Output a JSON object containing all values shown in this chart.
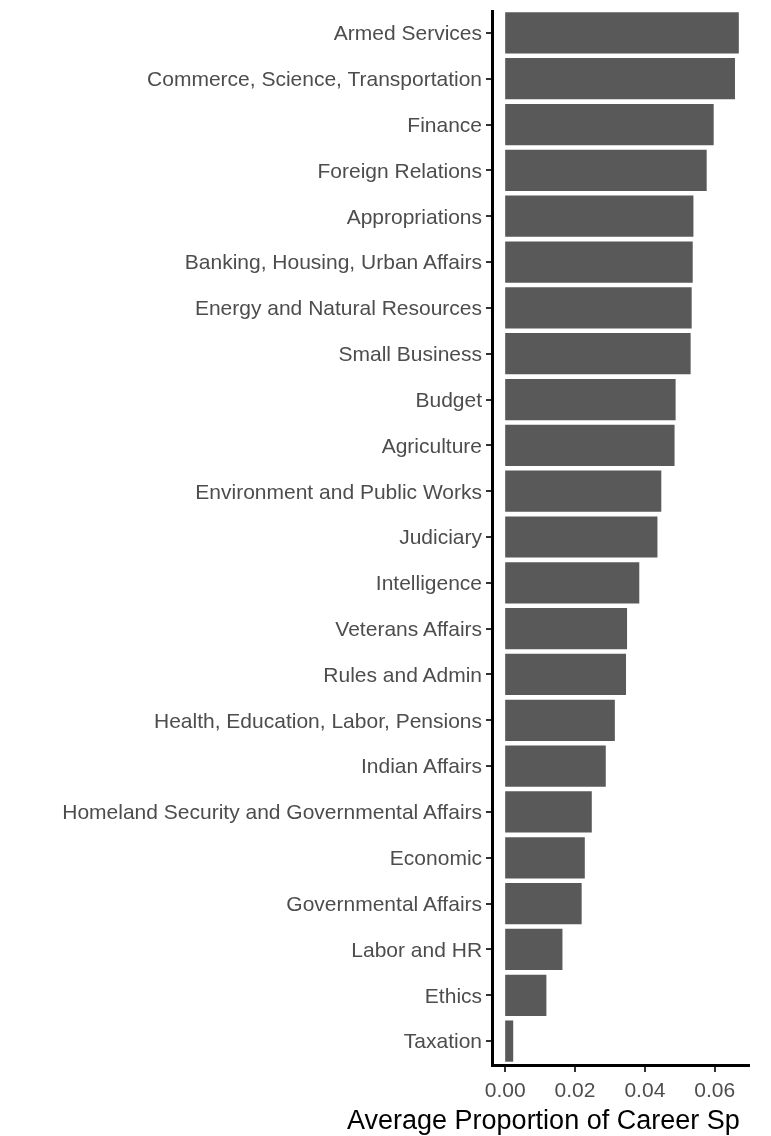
{
  "chart_data": {
    "type": "bar",
    "orientation": "horizontal",
    "xlabel": "Average Proportion of Career Sp",
    "categories": [
      "Armed Services",
      "Commerce, Science, Transportation",
      "Finance",
      "Foreign Relations",
      "Appropriations",
      "Banking, Housing, Urban Affairs",
      "Energy and Natural Resources",
      "Small Business",
      "Budget",
      "Agriculture",
      "Environment and Public Works",
      "Judiciary",
      "Intelligence",
      "Veterans Affairs",
      "Rules and Admin",
      "Health, Education, Labor, Pensions",
      "Indian Affairs",
      "Homeland Security and Governmental Affairs",
      "Economic",
      "Governmental Affairs",
      "Labor and HR",
      "Ethics",
      "Taxation"
    ],
    "values": [
      0.0669,
      0.0658,
      0.0597,
      0.0577,
      0.0539,
      0.0537,
      0.0534,
      0.0531,
      0.0488,
      0.0485,
      0.0447,
      0.0436,
      0.0384,
      0.0349,
      0.0346,
      0.0314,
      0.0288,
      0.0248,
      0.0228,
      0.0219,
      0.0164,
      0.0118,
      0.0023
    ],
    "color": "#595959",
    "xlim": [
      -0.0032,
      0.0701
    ],
    "xticks": [
      {
        "value": 0,
        "label": "0.00"
      },
      {
        "value": 0.02,
        "label": "0.02"
      },
      {
        "value": 0.04,
        "label": "0.04"
      },
      {
        "value": 0.06,
        "label": "0.06"
      }
    ],
    "grid": false
  }
}
